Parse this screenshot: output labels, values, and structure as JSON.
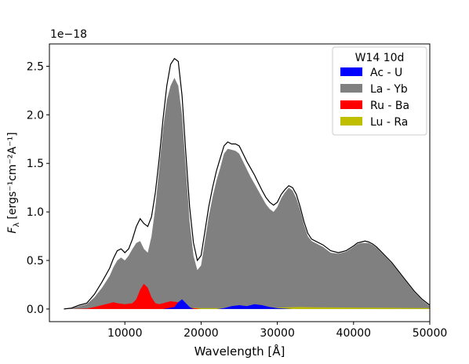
{
  "chart_data": {
    "type": "area",
    "title": "",
    "offset_label": "1e−18",
    "xlabel": "Wavelength [Å]",
    "ylabel": {
      "main": "F",
      "sub": "λ",
      "unit": "[ergs⁻¹cm⁻²A⁻¹]"
    },
    "xlim": [
      100,
      50000
    ],
    "ylim": [
      -0.13,
      2.73
    ],
    "xticks": [
      10000,
      20000,
      30000,
      40000,
      50000
    ],
    "xtick_labels": [
      "10000",
      "20000",
      "30000",
      "40000",
      "50000"
    ],
    "yticks": [
      0.0,
      0.5,
      1.0,
      1.5,
      2.0,
      2.5
    ],
    "ytick_labels": [
      "0.0",
      "0.5",
      "1.0",
      "1.5",
      "2.0",
      "2.5"
    ],
    "grid": false,
    "legend": {
      "title": "W14 10d",
      "placement": "top-right",
      "entries": [
        {
          "label": "Ac - U",
          "color": "#0000ff"
        },
        {
          "label": "La - Yb",
          "color": "#808080"
        },
        {
          "label": "Ru - Ba",
          "color": "#ff0000"
        },
        {
          "label": "Lu - Ra",
          "color": "#bfbf00"
        }
      ]
    },
    "series": [
      {
        "name": "Total",
        "kind": "line",
        "color": "#000000",
        "x": [
          2000,
          3000,
          4000,
          5000,
          6000,
          7000,
          8000,
          8500,
          9000,
          9500,
          10000,
          10500,
          11000,
          11500,
          12000,
          12500,
          13000,
          13500,
          14000,
          14500,
          15000,
          15500,
          16000,
          16500,
          17000,
          17500,
          18000,
          18500,
          19000,
          19500,
          20000,
          20500,
          21000,
          21500,
          22000,
          22500,
          23000,
          23500,
          24000,
          24500,
          25000,
          25500,
          26000,
          26500,
          27000,
          27500,
          28000,
          28500,
          29000,
          29500,
          30000,
          30500,
          31000,
          31500,
          32000,
          32500,
          33000,
          33500,
          34000,
          34500,
          35000,
          36000,
          37000,
          38000,
          39000,
          40000,
          40500,
          41000,
          41500,
          42000,
          42500,
          43000,
          43500,
          44000,
          45000,
          46000,
          47000,
          48000,
          49000,
          50000
        ],
        "y": [
          0.0,
          0.01,
          0.04,
          0.06,
          0.15,
          0.28,
          0.42,
          0.52,
          0.6,
          0.62,
          0.58,
          0.62,
          0.72,
          0.85,
          0.93,
          0.88,
          0.85,
          0.95,
          1.2,
          1.55,
          1.95,
          2.3,
          2.52,
          2.58,
          2.55,
          2.2,
          1.6,
          1.05,
          0.68,
          0.5,
          0.55,
          0.8,
          1.05,
          1.25,
          1.42,
          1.55,
          1.68,
          1.72,
          1.7,
          1.7,
          1.68,
          1.6,
          1.52,
          1.45,
          1.38,
          1.3,
          1.22,
          1.15,
          1.1,
          1.07,
          1.1,
          1.18,
          1.23,
          1.27,
          1.25,
          1.18,
          1.05,
          0.9,
          0.78,
          0.72,
          0.7,
          0.66,
          0.6,
          0.58,
          0.6,
          0.65,
          0.68,
          0.69,
          0.7,
          0.69,
          0.67,
          0.64,
          0.6,
          0.56,
          0.48,
          0.38,
          0.28,
          0.18,
          0.1,
          0.04
        ]
      },
      {
        "name": "La - Yb",
        "kind": "area",
        "color": "#808080",
        "x": [
          2000,
          3000,
          4000,
          5000,
          6000,
          7000,
          8000,
          8500,
          9000,
          9500,
          10000,
          10500,
          11000,
          11500,
          12000,
          12500,
          13000,
          13500,
          14000,
          14500,
          15000,
          15500,
          16000,
          16500,
          17000,
          17500,
          18000,
          18500,
          19000,
          19500,
          20000,
          20500,
          21000,
          21500,
          22000,
          22500,
          23000,
          23500,
          24000,
          24500,
          25000,
          25500,
          26000,
          26500,
          27000,
          27500,
          28000,
          28500,
          29000,
          29500,
          30000,
          30500,
          31000,
          31500,
          32000,
          32500,
          33000,
          33500,
          34000,
          34500,
          35000,
          36000,
          37000,
          38000,
          39000,
          40000,
          40500,
          41000,
          41500,
          42000,
          42500,
          43000,
          43500,
          44000,
          45000,
          46000,
          47000,
          48000,
          49000,
          50000
        ],
        "y": [
          0.0,
          0.01,
          0.03,
          0.05,
          0.12,
          0.22,
          0.34,
          0.43,
          0.5,
          0.53,
          0.5,
          0.55,
          0.62,
          0.68,
          0.7,
          0.62,
          0.58,
          0.75,
          1.05,
          1.45,
          1.85,
          2.15,
          2.3,
          2.38,
          2.3,
          2.0,
          1.45,
          0.9,
          0.55,
          0.4,
          0.45,
          0.7,
          0.95,
          1.15,
          1.32,
          1.45,
          1.6,
          1.65,
          1.64,
          1.63,
          1.6,
          1.52,
          1.44,
          1.36,
          1.29,
          1.22,
          1.15,
          1.08,
          1.03,
          1.0,
          1.05,
          1.14,
          1.2,
          1.25,
          1.22,
          1.14,
          1.02,
          0.87,
          0.75,
          0.7,
          0.68,
          0.64,
          0.58,
          0.57,
          0.59,
          0.64,
          0.67,
          0.68,
          0.68,
          0.68,
          0.66,
          0.63,
          0.59,
          0.55,
          0.47,
          0.37,
          0.27,
          0.17,
          0.09,
          0.03
        ]
      },
      {
        "name": "Ru - Ba",
        "kind": "area",
        "color": "#ff0000",
        "x": [
          3000,
          5000,
          6000,
          7000,
          8000,
          8500,
          9000,
          10000,
          11000,
          11500,
          12000,
          12500,
          13000,
          13500,
          14000,
          14500,
          15000,
          16000,
          17000,
          17500,
          18000,
          19000,
          20000
        ],
        "y": [
          0.0,
          0.005,
          0.02,
          0.04,
          0.06,
          0.07,
          0.06,
          0.05,
          0.06,
          0.1,
          0.2,
          0.26,
          0.22,
          0.12,
          0.06,
          0.05,
          0.06,
          0.08,
          0.07,
          0.04,
          0.02,
          0.01,
          0.0
        ]
      },
      {
        "name": "Ac - U",
        "kind": "area",
        "color": "#0000ff",
        "x": [
          15000,
          16500,
          17000,
          17500,
          18000,
          18500,
          19000,
          22000,
          23000,
          24000,
          25000,
          26000,
          27000,
          28000,
          29000,
          30000,
          31000,
          32000
        ],
        "y": [
          0.0,
          0.02,
          0.07,
          0.1,
          0.06,
          0.02,
          0.0,
          0.0,
          0.01,
          0.03,
          0.04,
          0.03,
          0.05,
          0.04,
          0.02,
          0.01,
          0.005,
          0.0
        ]
      },
      {
        "name": "Lu - Ra",
        "kind": "area",
        "color": "#bfbf00",
        "x": [
          14000,
          16000,
          17000,
          18000,
          20000,
          25000,
          30000,
          33000,
          35000,
          40000,
          45000,
          50000
        ],
        "y": [
          0.0,
          0.015,
          0.03,
          0.015,
          0.01,
          0.01,
          0.015,
          0.02,
          0.018,
          0.015,
          0.012,
          0.01
        ]
      }
    ]
  }
}
